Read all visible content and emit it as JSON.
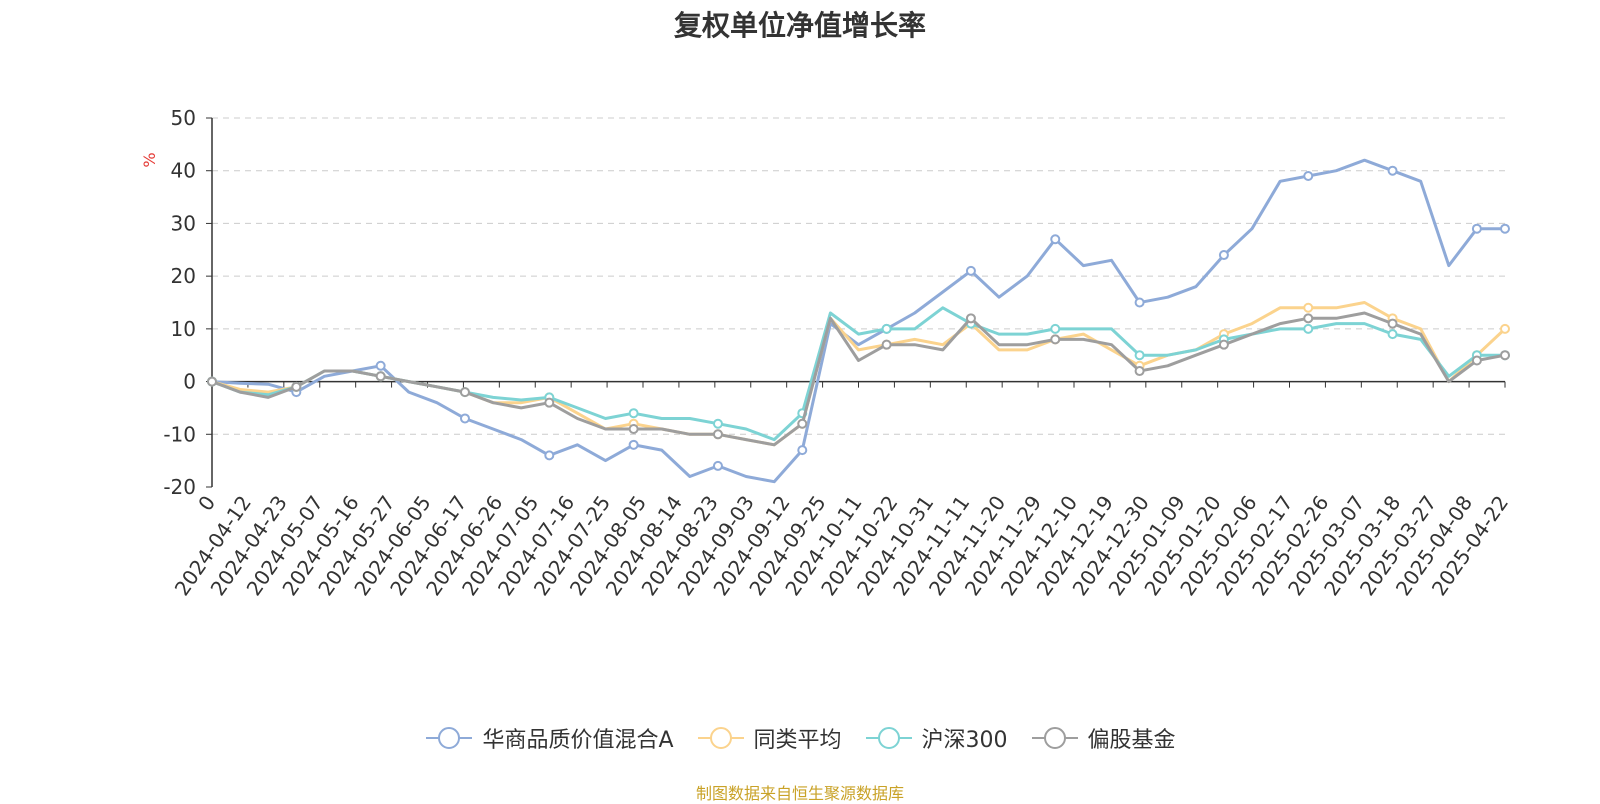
{
  "title": "复权单位净值增长率",
  "source_note": "制图数据来自恒生聚源数据库",
  "chart_data": {
    "type": "line",
    "title": "复权单位净值增长率",
    "ylabel": "%",
    "ylim": [
      -20,
      50
    ],
    "yticks": [
      -20,
      -10,
      0,
      10,
      20,
      30,
      40,
      50
    ],
    "grid": true,
    "legend_position": "bottom",
    "x_tick_labels": [
      "0",
      "2024-04-12",
      "2024-04-23",
      "2024-05-07",
      "2024-05-16",
      "2024-05-27",
      "2024-06-05",
      "2024-06-17",
      "2024-06-26",
      "2024-07-05",
      "2024-07-16",
      "2024-07-25",
      "2024-08-05",
      "2024-08-14",
      "2024-08-23",
      "2024-09-03",
      "2024-09-12",
      "2024-09-25",
      "2024-10-11",
      "2024-10-22",
      "2024-10-31",
      "2024-11-11",
      "2024-11-20",
      "2024-11-29",
      "2024-12-10",
      "2024-12-19",
      "2024-12-30",
      "2025-01-09",
      "2025-01-20",
      "2025-02-06",
      "2025-02-17",
      "2025-02-26",
      "2025-03-07",
      "2025-03-18",
      "2025-03-27",
      "2025-04-08",
      "2025-04-22"
    ],
    "series": [
      {
        "name": "华商品质价值混合A",
        "color": "#8eaad8",
        "values": [
          0,
          -0.3,
          -0.5,
          -2,
          1,
          2,
          3,
          -2,
          -4,
          -7,
          -9,
          -11,
          -14,
          -12,
          -15,
          -12,
          -13,
          -18,
          -16,
          -18,
          -19,
          -13,
          11,
          7,
          10,
          13,
          17,
          21,
          16,
          20,
          27,
          22,
          23,
          15,
          16,
          18,
          24,
          29,
          38,
          39,
          40,
          42,
          40,
          38,
          22,
          29,
          29
        ]
      },
      {
        "name": "同类平均",
        "color": "#fbd38d",
        "values": [
          0,
          -1.5,
          -2,
          -1,
          2,
          2,
          1,
          0,
          -1,
          -2,
          -4,
          -4,
          -3,
          -6,
          -9,
          -8,
          -9,
          -10,
          -10,
          -11,
          -12,
          -8,
          12,
          6,
          7,
          8,
          7,
          11,
          6,
          6,
          8,
          9,
          6,
          3,
          5,
          6,
          9,
          11,
          14,
          14,
          14,
          15,
          12,
          10,
          0,
          5,
          10
        ]
      },
      {
        "name": "沪深300",
        "color": "#7dd3d4",
        "values": [
          0,
          -2,
          -2.5,
          -1,
          2,
          2,
          1,
          0,
          -1,
          -2,
          -3,
          -3.5,
          -3,
          -5,
          -7,
          -6,
          -7,
          -7,
          -8,
          -9,
          -11,
          -6,
          13,
          9,
          10,
          10,
          14,
          11,
          9,
          9,
          10,
          10,
          10,
          5,
          5,
          6,
          8,
          9,
          10,
          10,
          11,
          11,
          9,
          8,
          1,
          5,
          5
        ]
      },
      {
        "name": "偏股基金",
        "color": "#9e9e9e",
        "values": [
          0,
          -2,
          -3,
          -1,
          2,
          2,
          1,
          0,
          -1,
          -2,
          -4,
          -5,
          -4,
          -7,
          -9,
          -9,
          -9,
          -10,
          -10,
          -11,
          -12,
          -8,
          12,
          4,
          7,
          7,
          6,
          12,
          7,
          7,
          8,
          8,
          7,
          2,
          3,
          5,
          7,
          9,
          11,
          12,
          12,
          13,
          11,
          9,
          0,
          4,
          5
        ]
      }
    ]
  }
}
